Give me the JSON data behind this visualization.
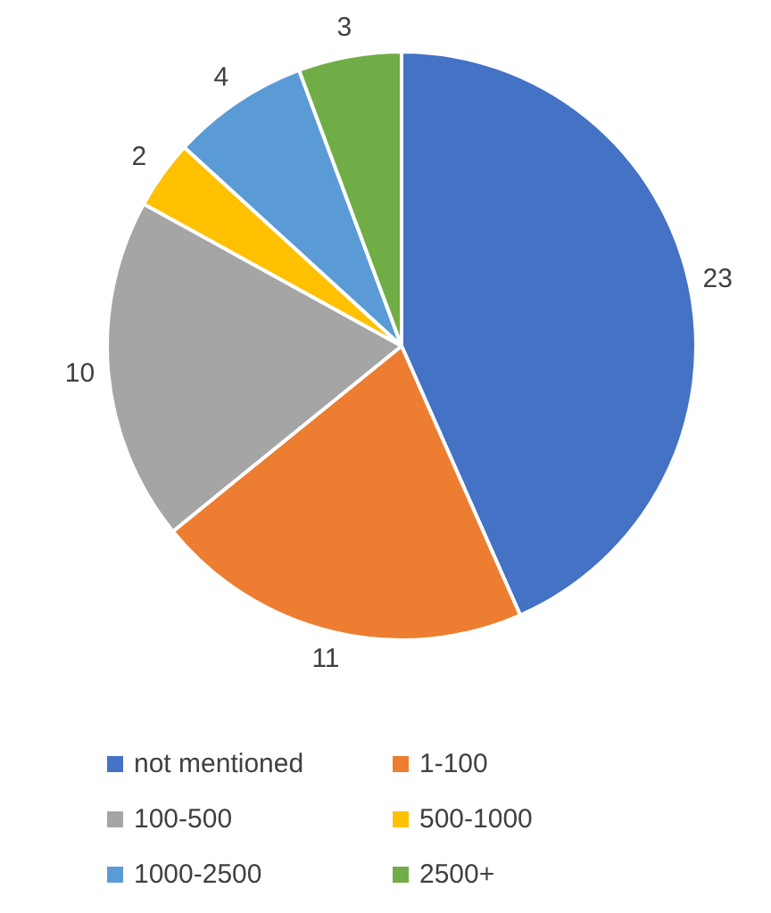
{
  "chart_data": {
    "type": "pie",
    "categories": [
      "not mentioned",
      "1-100",
      "100-500",
      "500-1000",
      "1000-2500",
      "2500+"
    ],
    "values": [
      23,
      11,
      10,
      2,
      4,
      3
    ],
    "colors": [
      "#4472c4",
      "#ed7d31",
      "#a5a5a5",
      "#ffc000",
      "#5b9bd5",
      "#70ad47"
    ],
    "data_labels": true,
    "legend": "bottom"
  }
}
